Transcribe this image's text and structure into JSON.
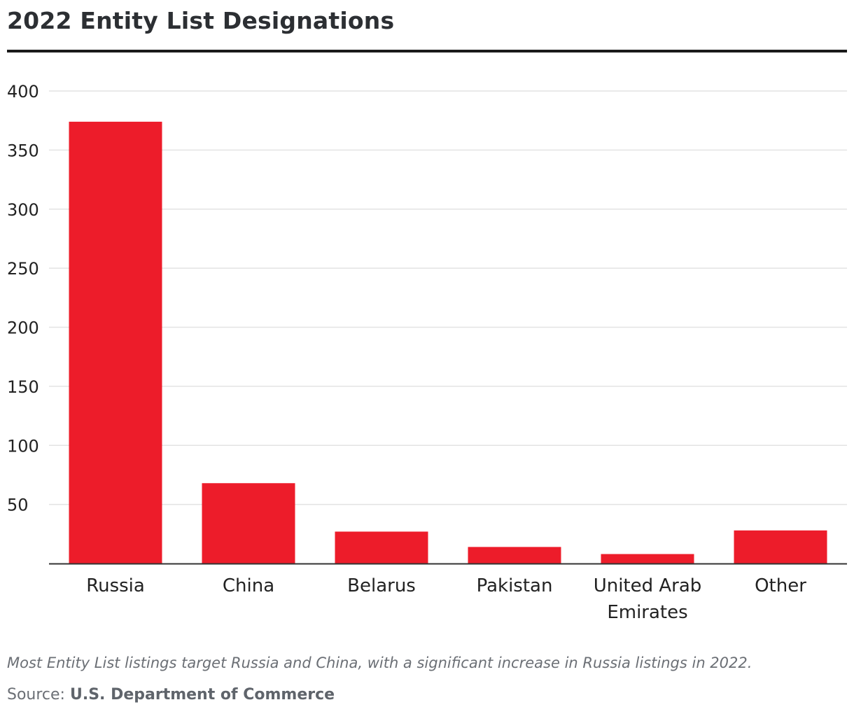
{
  "title": "2022 Entity List Designations",
  "caption": "Most Entity List listings target Russia and China, with a significant increase in Russia listings in 2022.",
  "source": {
    "label": "Source:",
    "name": "U.S. Department of Commerce"
  },
  "colors": {
    "bar": "#ed1c2a",
    "grid": "#e3e3e3",
    "axis": "#333333"
  },
  "chart_data": {
    "type": "bar",
    "categories": [
      [
        "Russia"
      ],
      [
        "China"
      ],
      [
        "Belarus"
      ],
      [
        "Pakistan"
      ],
      [
        "United Arab",
        "Emirates"
      ],
      [
        "Other"
      ]
    ],
    "values": [
      374,
      68,
      27,
      14,
      8,
      28
    ],
    "yticks": [
      50,
      100,
      150,
      200,
      250,
      300,
      350,
      400
    ],
    "ylim": [
      0,
      400
    ],
    "grid": true,
    "legend": "none"
  }
}
